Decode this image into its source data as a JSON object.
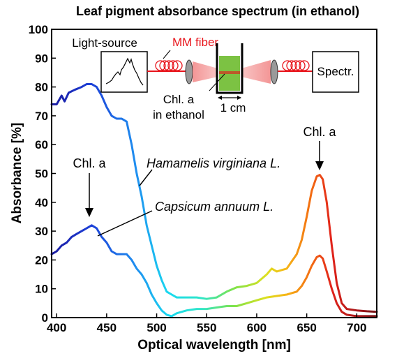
{
  "chart_data": {
    "type": "line",
    "title": "Leaf pigment absorbance spectrum (in ethanol)",
    "xlabel": "Optical wavelength [nm]",
    "ylabel": "Absorbance [%]",
    "xlim": [
      395,
      720
    ],
    "ylim": [
      0,
      100
    ],
    "xticks": [
      400,
      450,
      500,
      550,
      600,
      650,
      700
    ],
    "yticks": [
      0,
      10,
      20,
      30,
      40,
      50,
      60,
      70,
      80,
      90,
      100
    ],
    "grid": false,
    "colormap": "wavelength (blue-cyan-green-yellow-red)",
    "series": [
      {
        "name": "Hamamelis virginiana L.",
        "x": [
          395,
          400,
          405,
          408,
          412,
          418,
          425,
          430,
          435,
          440,
          445,
          450,
          455,
          460,
          465,
          470,
          475,
          480,
          485,
          490,
          495,
          500,
          505,
          510,
          515,
          520,
          530,
          540,
          550,
          560,
          570,
          580,
          590,
          600,
          610,
          615,
          620,
          630,
          640,
          645,
          650,
          655,
          660,
          663,
          666,
          670,
          675,
          680,
          685,
          690,
          700,
          710,
          720
        ],
        "y": [
          74,
          74,
          77,
          75,
          78,
          79,
          80,
          81,
          81,
          80,
          77,
          73,
          70,
          69,
          69,
          68,
          60,
          50,
          42,
          32,
          25,
          18,
          13,
          9,
          8,
          7,
          7,
          7,
          6.5,
          7,
          9,
          10.5,
          11,
          12,
          15,
          17,
          16,
          17,
          22,
          27,
          35,
          44,
          49,
          49.5,
          48,
          40,
          25,
          12,
          5,
          3,
          2.5,
          2.2,
          2
        ]
      },
      {
        "name": "Capsicum annuum L.",
        "x": [
          395,
          400,
          405,
          410,
          415,
          420,
          425,
          430,
          435,
          440,
          445,
          450,
          455,
          460,
          465,
          470,
          475,
          480,
          485,
          490,
          495,
          500,
          505,
          510,
          515,
          520,
          530,
          540,
          550,
          560,
          570,
          580,
          590,
          600,
          610,
          620,
          630,
          640,
          645,
          650,
          655,
          660,
          663,
          666,
          670,
          675,
          680,
          685,
          690,
          700,
          710,
          720
        ],
        "y": [
          22,
          23,
          25,
          26,
          28,
          29,
          30,
          31,
          32,
          31,
          28,
          26,
          23,
          22,
          22,
          22,
          20,
          17,
          15,
          12,
          8,
          5,
          2.5,
          1,
          0.5,
          1.5,
          2.5,
          3,
          3,
          3.5,
          4,
          4,
          5,
          6,
          7,
          7.5,
          8,
          9,
          11,
          14,
          18,
          21,
          21.5,
          20.5,
          16,
          10,
          5,
          2,
          1,
          0.5,
          0.5,
          0.5
        ]
      }
    ],
    "annotations": [
      {
        "text": "Hamamelis virginiana L.",
        "style": "italic"
      },
      {
        "text": "Capsicum annuum L.",
        "style": "italic"
      },
      {
        "text": "Chl. a",
        "target_x": 433,
        "target_y": 32
      },
      {
        "text": "Chl. a",
        "target_x": 663,
        "target_y": 49.5
      }
    ],
    "inset_labels": {
      "light_source": "Light-source",
      "fiber": "MM fiber",
      "spectrometer": "Spectr.",
      "sample_line1": "Chl. a",
      "sample_line2": "in ethanol",
      "path_length": "1 cm"
    },
    "colors": {
      "fiber_red": "#e8141b",
      "beam_pink": "#f28a8a",
      "sample_green": "#7cc243"
    }
  }
}
